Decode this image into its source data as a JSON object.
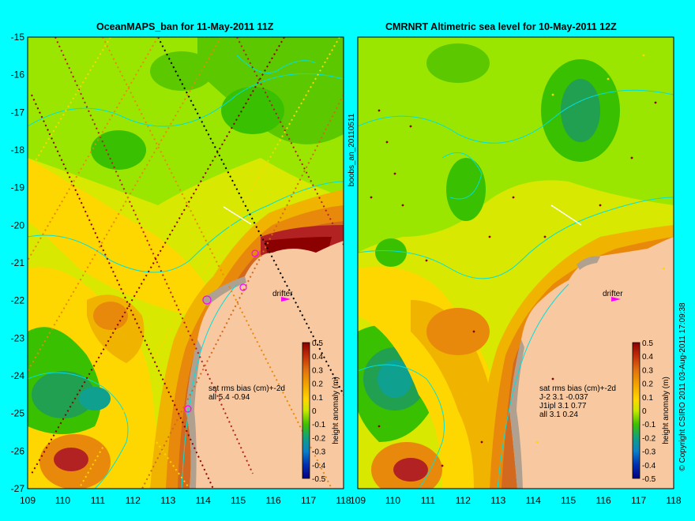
{
  "panels": [
    {
      "title": "OceanMAPS_ban for 11-May-2011 11Z",
      "stats_title": "sat rms bias (cm)+-2d",
      "stats": [
        "all 5.4 -0.94"
      ],
      "drifter_label": "drifter"
    },
    {
      "title": "CMRNRT Altimetric sea level  for 10-May-2011 12Z",
      "stats_title": "sat rms bias (cm)+-2d",
      "stats": [
        "J-2   3.1 -0.037",
        "J1ipl 3.1 0.77",
        "all 3.1 0.24"
      ],
      "drifter_label": "drifter"
    }
  ],
  "axes": {
    "y_ticks": [
      "-15",
      "-16",
      "-17",
      "-18",
      "-19",
      "-20",
      "-21",
      "-22",
      "-23",
      "-24",
      "-25",
      "-26",
      "-27"
    ],
    "x_ticks": [
      "109",
      "110",
      "111",
      "112",
      "113",
      "114",
      "115",
      "116",
      "117",
      "118"
    ]
  },
  "colorbar": {
    "label": "height anomaly (m)",
    "ticks": [
      "0.5",
      "0.4",
      "0.3",
      "0.2",
      "0.1",
      "0",
      "-0.1",
      "-0.2",
      "-0.3",
      "-0.4",
      "-0.5"
    ],
    "colors": [
      "#8b0000",
      "#b22222",
      "#d2691e",
      "#e8890b",
      "#f0b400",
      "#ffd700",
      "#d8e800",
      "#9be600",
      "#39c000",
      "#20a050",
      "#10a090",
      "#0a7fc0",
      "#0050c0",
      "#0020a0",
      "#000080"
    ]
  },
  "side_label": "boobs_an_20110511",
  "copyright": "© Copyright CSIRO 2011   03-Aug-2011 17:09:38",
  "colors": {
    "background": "#00ffff",
    "land": "#f8c8a0",
    "coast_gray": "#b0a090"
  }
}
